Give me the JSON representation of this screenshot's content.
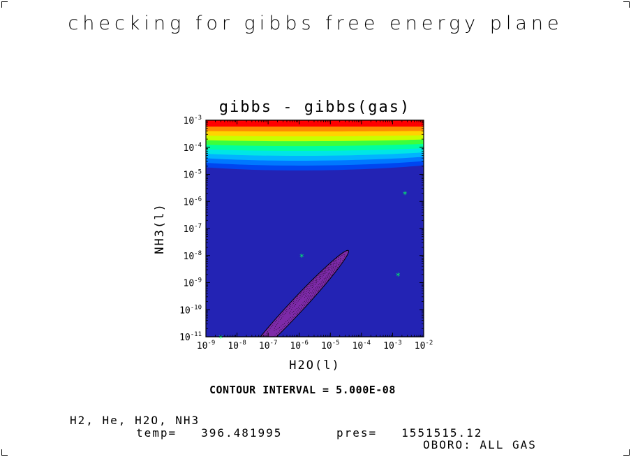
{
  "page": {
    "title": "checking for gibbs free energy plane"
  },
  "chart_data": {
    "type": "heatmap",
    "title": "gibbs - gibbs(gas)",
    "xlabel": "H2O(l)",
    "ylabel": "NH3(l)",
    "x_scale": "log",
    "y_scale": "log",
    "xlim": [
      1e-09,
      0.01
    ],
    "ylim": [
      1e-11,
      0.001
    ],
    "x_ticks": [
      {
        "base": "10",
        "exp": "-9"
      },
      {
        "base": "10",
        "exp": "-8"
      },
      {
        "base": "10",
        "exp": "-7"
      },
      {
        "base": "10",
        "exp": "-6"
      },
      {
        "base": "10",
        "exp": "-5"
      },
      {
        "base": "10",
        "exp": "-4"
      },
      {
        "base": "10",
        "exp": "-3"
      },
      {
        "base": "10",
        "exp": "-2"
      }
    ],
    "y_ticks": [
      {
        "base": "10",
        "exp": "-11"
      },
      {
        "base": "10",
        "exp": "-10"
      },
      {
        "base": "10",
        "exp": "-9"
      },
      {
        "base": "10",
        "exp": "-8"
      },
      {
        "base": "10",
        "exp": "-7"
      },
      {
        "base": "10",
        "exp": "-6"
      },
      {
        "base": "10",
        "exp": "-5"
      },
      {
        "base": "10",
        "exp": "-4"
      },
      {
        "base": "10",
        "exp": "-3"
      }
    ],
    "contour_colors": [
      "#ff0000",
      "#ff8c00",
      "#ffd400",
      "#c8ff00",
      "#3cff3c",
      "#00ffa0",
      "#00e6e6",
      "#00b4ff",
      "#0078ff",
      "#0046f0"
    ],
    "background_color": "#2323b4",
    "minimum_region_color": "#7e2aa8",
    "marker_color": "#00ff66",
    "markers": [
      {
        "x": 3e-09,
        "y": 1e-11
      },
      {
        "x": 1.2e-06,
        "y": 1e-08
      },
      {
        "x": 0.0025,
        "y": 2e-06
      },
      {
        "x": 0.0015,
        "y": 2e-09
      }
    ]
  },
  "footer": {
    "contour_interval": "CONTOUR INTERVAL = 5.000E-08",
    "species": "H2, He, H2O, NH3",
    "temp": "temp=   396.481995",
    "pres": "pres=   1551515.12",
    "mode": "OBORO: ALL GAS"
  }
}
